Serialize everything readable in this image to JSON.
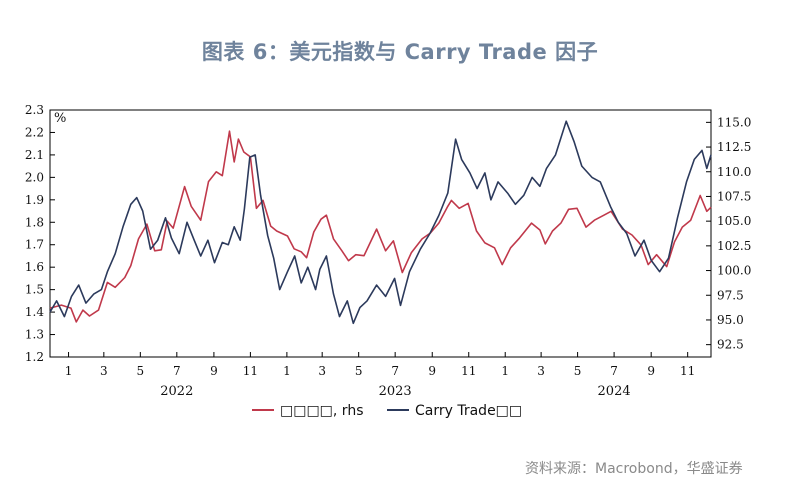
{
  "title": "图表 6：美元指数与 Carry Trade 因子",
  "source": "资料来源：Macrobond，华盛证券",
  "chart_data": {
    "type": "line",
    "x_range": [
      "2021-12-01",
      "2024-12-10"
    ],
    "x_month_ticks": [
      {
        "date": "2022-01-01",
        "label": "1"
      },
      {
        "date": "2022-03-01",
        "label": "3"
      },
      {
        "date": "2022-05-01",
        "label": "5"
      },
      {
        "date": "2022-07-01",
        "label": "7"
      },
      {
        "date": "2022-09-01",
        "label": "9"
      },
      {
        "date": "2022-11-01",
        "label": "11"
      },
      {
        "date": "2023-01-01",
        "label": "1"
      },
      {
        "date": "2023-03-01",
        "label": "3"
      },
      {
        "date": "2023-05-01",
        "label": "5"
      },
      {
        "date": "2023-07-01",
        "label": "7"
      },
      {
        "date": "2023-09-01",
        "label": "9"
      },
      {
        "date": "2023-11-01",
        "label": "11"
      },
      {
        "date": "2024-01-01",
        "label": "1"
      },
      {
        "date": "2024-03-01",
        "label": "3"
      },
      {
        "date": "2024-05-01",
        "label": "5"
      },
      {
        "date": "2024-07-01",
        "label": "7"
      },
      {
        "date": "2024-09-01",
        "label": "9"
      },
      {
        "date": "2024-11-01",
        "label": "11"
      }
    ],
    "x_year_labels": [
      {
        "date": "2022-07-01",
        "label": "2022"
      },
      {
        "date": "2023-07-01",
        "label": "2023"
      },
      {
        "date": "2024-07-01",
        "label": "2024"
      }
    ],
    "left_axis": {
      "unit_label": "%",
      "min": 1.2,
      "max": 2.3,
      "ticks": [
        "1.2",
        "1.3",
        "1.4",
        "1.5",
        "1.6",
        "1.7",
        "1.8",
        "1.9",
        "2.0",
        "2.1",
        "2.2",
        "2.3"
      ]
    },
    "right_axis": {
      "min": 91.25,
      "max": 116.25,
      "ticks": [
        "92.5",
        "95.0",
        "97.5",
        "100.0",
        "102.5",
        "105.0",
        "107.5",
        "110.0",
        "112.5",
        "115.0"
      ]
    },
    "grid": false,
    "legend_position": "bottom",
    "series": [
      {
        "name": "",
        "legend_label": "□□□□, rhs",
        "axis": "right",
        "color": "#c0394b",
        "points": [
          [
            "2021-12-01",
            96.2
          ],
          [
            "2021-12-20",
            96.5
          ],
          [
            "2022-01-05",
            96.2
          ],
          [
            "2022-01-14",
            94.8
          ],
          [
            "2022-01-25",
            96.0
          ],
          [
            "2022-02-05",
            95.4
          ],
          [
            "2022-02-20",
            96.0
          ],
          [
            "2022-03-07",
            98.8
          ],
          [
            "2022-03-20",
            98.3
          ],
          [
            "2022-04-05",
            99.3
          ],
          [
            "2022-04-15",
            100.5
          ],
          [
            "2022-04-28",
            103.2
          ],
          [
            "2022-05-12",
            104.7
          ],
          [
            "2022-05-25",
            102.0
          ],
          [
            "2022-06-05",
            102.1
          ],
          [
            "2022-06-15",
            105.0
          ],
          [
            "2022-06-25",
            104.3
          ],
          [
            "2022-07-14",
            108.5
          ],
          [
            "2022-07-25",
            106.5
          ],
          [
            "2022-08-10",
            105.1
          ],
          [
            "2022-08-23",
            109.0
          ],
          [
            "2022-09-05",
            110.0
          ],
          [
            "2022-09-15",
            109.6
          ],
          [
            "2022-09-27",
            114.1
          ],
          [
            "2022-10-05",
            111.0
          ],
          [
            "2022-10-12",
            113.3
          ],
          [
            "2022-10-21",
            112.0
          ],
          [
            "2022-11-01",
            111.5
          ],
          [
            "2022-11-11",
            106.3
          ],
          [
            "2022-11-22",
            107.1
          ],
          [
            "2022-12-05",
            104.5
          ],
          [
            "2022-12-15",
            104.0
          ],
          [
            "2023-01-02",
            103.5
          ],
          [
            "2023-01-13",
            102.2
          ],
          [
            "2023-01-25",
            101.9
          ],
          [
            "2023-02-03",
            101.3
          ],
          [
            "2023-02-15",
            103.9
          ],
          [
            "2023-02-27",
            105.2
          ],
          [
            "2023-03-08",
            105.6
          ],
          [
            "2023-03-20",
            103.2
          ],
          [
            "2023-04-03",
            102.0
          ],
          [
            "2023-04-14",
            101.0
          ],
          [
            "2023-04-26",
            101.6
          ],
          [
            "2023-05-10",
            101.5
          ],
          [
            "2023-05-31",
            104.2
          ],
          [
            "2023-06-15",
            102.0
          ],
          [
            "2023-06-28",
            103.0
          ],
          [
            "2023-07-13",
            99.8
          ],
          [
            "2023-07-28",
            101.8
          ],
          [
            "2023-08-15",
            103.2
          ],
          [
            "2023-08-29",
            103.8
          ],
          [
            "2023-09-12",
            104.8
          ],
          [
            "2023-09-27",
            106.5
          ],
          [
            "2023-10-03",
            107.1
          ],
          [
            "2023-10-16",
            106.3
          ],
          [
            "2023-10-31",
            106.8
          ],
          [
            "2023-11-14",
            104.0
          ],
          [
            "2023-11-28",
            102.8
          ],
          [
            "2023-12-14",
            102.3
          ],
          [
            "2023-12-27",
            100.6
          ],
          [
            "2024-01-10",
            102.3
          ],
          [
            "2024-01-25",
            103.3
          ],
          [
            "2024-02-14",
            104.8
          ],
          [
            "2024-02-28",
            104.1
          ],
          [
            "2024-03-08",
            102.7
          ],
          [
            "2024-03-20",
            104.0
          ],
          [
            "2024-04-03",
            104.8
          ],
          [
            "2024-04-16",
            106.2
          ],
          [
            "2024-04-30",
            106.3
          ],
          [
            "2024-05-15",
            104.4
          ],
          [
            "2024-05-29",
            105.1
          ],
          [
            "2024-06-14",
            105.6
          ],
          [
            "2024-06-26",
            106.0
          ],
          [
            "2024-07-15",
            104.2
          ],
          [
            "2024-07-31",
            103.6
          ],
          [
            "2024-08-15",
            102.6
          ],
          [
            "2024-08-27",
            100.6
          ],
          [
            "2024-09-10",
            101.6
          ],
          [
            "2024-09-27",
            100.4
          ],
          [
            "2024-10-10",
            102.9
          ],
          [
            "2024-10-23",
            104.4
          ],
          [
            "2024-11-06",
            105.1
          ],
          [
            "2024-11-22",
            107.6
          ],
          [
            "2024-12-03",
            106.0
          ],
          [
            "2024-12-10",
            106.4
          ]
        ]
      },
      {
        "name": "",
        "legend_label": "Carry Trade□□",
        "axis": "left",
        "color": "#2c3a5c",
        "points": [
          [
            "2021-12-01",
            1.4
          ],
          [
            "2021-12-12",
            1.45
          ],
          [
            "2021-12-25",
            1.38
          ],
          [
            "2022-01-06",
            1.47
          ],
          [
            "2022-01-18",
            1.52
          ],
          [
            "2022-01-30",
            1.44
          ],
          [
            "2022-02-12",
            1.48
          ],
          [
            "2022-02-25",
            1.5
          ],
          [
            "2022-03-07",
            1.58
          ],
          [
            "2022-03-20",
            1.66
          ],
          [
            "2022-04-02",
            1.78
          ],
          [
            "2022-04-15",
            1.88
          ],
          [
            "2022-04-25",
            1.91
          ],
          [
            "2022-05-05",
            1.85
          ],
          [
            "2022-05-18",
            1.68
          ],
          [
            "2022-05-30",
            1.72
          ],
          [
            "2022-06-12",
            1.82
          ],
          [
            "2022-06-22",
            1.73
          ],
          [
            "2022-07-05",
            1.66
          ],
          [
            "2022-07-18",
            1.8
          ],
          [
            "2022-07-30",
            1.72
          ],
          [
            "2022-08-10",
            1.65
          ],
          [
            "2022-08-22",
            1.72
          ],
          [
            "2022-09-02",
            1.62
          ],
          [
            "2022-09-15",
            1.71
          ],
          [
            "2022-09-25",
            1.7
          ],
          [
            "2022-10-05",
            1.78
          ],
          [
            "2022-10-15",
            1.72
          ],
          [
            "2022-10-22",
            1.86
          ],
          [
            "2022-10-31",
            2.09
          ],
          [
            "2022-11-09",
            2.1
          ],
          [
            "2022-11-18",
            1.92
          ],
          [
            "2022-11-30",
            1.74
          ],
          [
            "2022-12-10",
            1.64
          ],
          [
            "2022-12-20",
            1.5
          ],
          [
            "2023-01-02",
            1.58
          ],
          [
            "2023-01-14",
            1.65
          ],
          [
            "2023-01-25",
            1.53
          ],
          [
            "2023-02-05",
            1.6
          ],
          [
            "2023-02-18",
            1.5
          ],
          [
            "2023-02-25",
            1.59
          ],
          [
            "2023-03-08",
            1.65
          ],
          [
            "2023-03-20",
            1.48
          ],
          [
            "2023-03-30",
            1.38
          ],
          [
            "2023-04-12",
            1.45
          ],
          [
            "2023-04-22",
            1.35
          ],
          [
            "2023-05-03",
            1.42
          ],
          [
            "2023-05-15",
            1.45
          ],
          [
            "2023-05-31",
            1.52
          ],
          [
            "2023-06-15",
            1.47
          ],
          [
            "2023-06-30",
            1.55
          ],
          [
            "2023-07-10",
            1.43
          ],
          [
            "2023-07-25",
            1.58
          ],
          [
            "2023-08-12",
            1.68
          ],
          [
            "2023-08-28",
            1.75
          ],
          [
            "2023-09-12",
            1.83
          ],
          [
            "2023-09-27",
            1.93
          ],
          [
            "2023-10-10",
            2.17
          ],
          [
            "2023-10-20",
            2.08
          ],
          [
            "2023-11-03",
            2.02
          ],
          [
            "2023-11-15",
            1.95
          ],
          [
            "2023-11-28",
            2.02
          ],
          [
            "2023-12-08",
            1.9
          ],
          [
            "2023-12-20",
            1.98
          ],
          [
            "2024-01-05",
            1.93
          ],
          [
            "2024-01-18",
            1.88
          ],
          [
            "2024-02-01",
            1.92
          ],
          [
            "2024-02-15",
            2.0
          ],
          [
            "2024-02-28",
            1.96
          ],
          [
            "2024-03-10",
            2.04
          ],
          [
            "2024-03-25",
            2.1
          ],
          [
            "2024-04-12",
            2.25
          ],
          [
            "2024-04-25",
            2.16
          ],
          [
            "2024-05-08",
            2.05
          ],
          [
            "2024-05-25",
            2.0
          ],
          [
            "2024-06-08",
            1.98
          ],
          [
            "2024-06-25",
            1.87
          ],
          [
            "2024-07-08",
            1.8
          ],
          [
            "2024-07-22",
            1.75
          ],
          [
            "2024-08-05",
            1.65
          ],
          [
            "2024-08-20",
            1.72
          ],
          [
            "2024-09-01",
            1.63
          ],
          [
            "2024-09-15",
            1.58
          ],
          [
            "2024-09-30",
            1.64
          ],
          [
            "2024-10-15",
            1.82
          ],
          [
            "2024-10-30",
            1.98
          ],
          [
            "2024-11-12",
            2.08
          ],
          [
            "2024-11-25",
            2.12
          ],
          [
            "2024-12-03",
            2.04
          ],
          [
            "2024-12-10",
            2.1
          ]
        ]
      }
    ]
  }
}
